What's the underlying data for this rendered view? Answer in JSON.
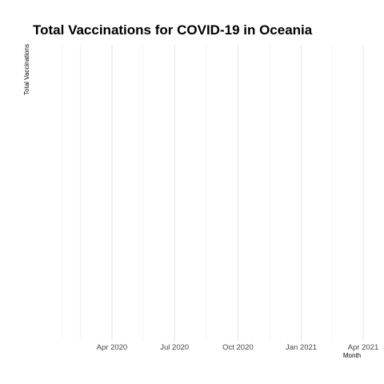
{
  "chart_data": {
    "type": "line",
    "title": "Total Vaccinations for COVID-19 in Oceania",
    "xlabel": "Month",
    "ylabel": "Total Vaccinations",
    "x_axis_type": "date",
    "xlim": [
      "2020-01-20",
      "2021-04-15"
    ],
    "x_ticks": [
      {
        "date": "2020-04-01",
        "label": "Apr 2020"
      },
      {
        "date": "2020-07-01",
        "label": "Jul 2020"
      },
      {
        "date": "2020-10-01",
        "label": "Oct 2020"
      },
      {
        "date": "2021-01-01",
        "label": "Jan 2021"
      },
      {
        "date": "2021-04-01",
        "label": "Apr 2021"
      }
    ],
    "x_minor_ticks": [
      "2020-02-15",
      "2020-05-16",
      "2020-08-16",
      "2020-11-16",
      "2021-02-15"
    ],
    "series": [],
    "grid": true,
    "legend": "none",
    "colors": {
      "grid_major": "#e6e6e6",
      "grid_minor": "#f2f2f2",
      "tick_text": "#444444"
    }
  }
}
